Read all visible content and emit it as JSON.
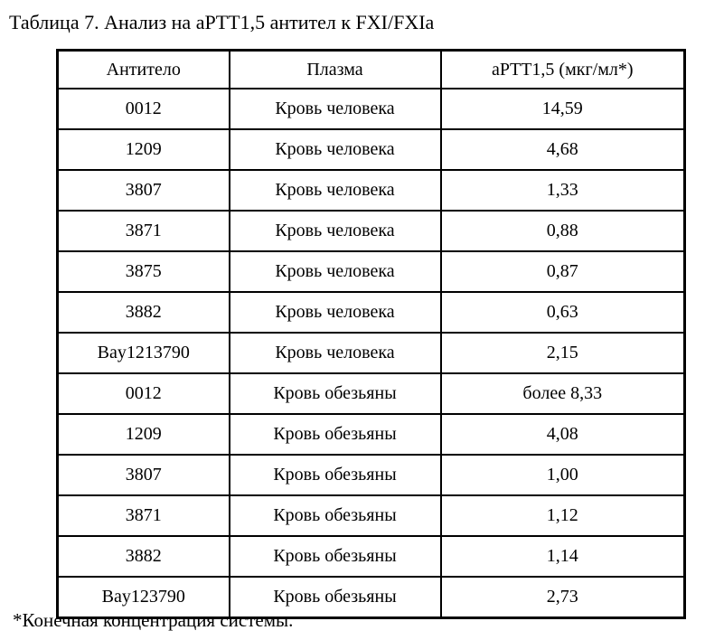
{
  "caption": "Таблица 7. Анализ на aPTT1,5 антител к FXI/FXIa",
  "table": {
    "headers": [
      "Антитело",
      "Плазма",
      "aPTT1,5 (мкг/мл*)"
    ],
    "rows": [
      [
        "0012",
        "Кровь человека",
        "14,59"
      ],
      [
        "1209",
        "Кровь человека",
        "4,68"
      ],
      [
        "3807",
        "Кровь человека",
        "1,33"
      ],
      [
        "3871",
        "Кровь человека",
        "0,88"
      ],
      [
        "3875",
        "Кровь человека",
        "0,87"
      ],
      [
        "3882",
        "Кровь человека",
        "0,63"
      ],
      [
        "Bay1213790",
        "Кровь человека",
        "2,15"
      ],
      [
        "0012",
        "Кровь обезьяны",
        "более 8,33"
      ],
      [
        "1209",
        "Кровь обезьяны",
        "4,08"
      ],
      [
        "3807",
        "Кровь обезьяны",
        "1,00"
      ],
      [
        "3871",
        "Кровь обезьяны",
        "1,12"
      ],
      [
        "3882",
        "Кровь обезьяны",
        "1,14"
      ],
      [
        "Bay123790",
        "Кровь обезьяны",
        "2,73"
      ]
    ]
  },
  "footnote": "*Конечная концентрация системы."
}
